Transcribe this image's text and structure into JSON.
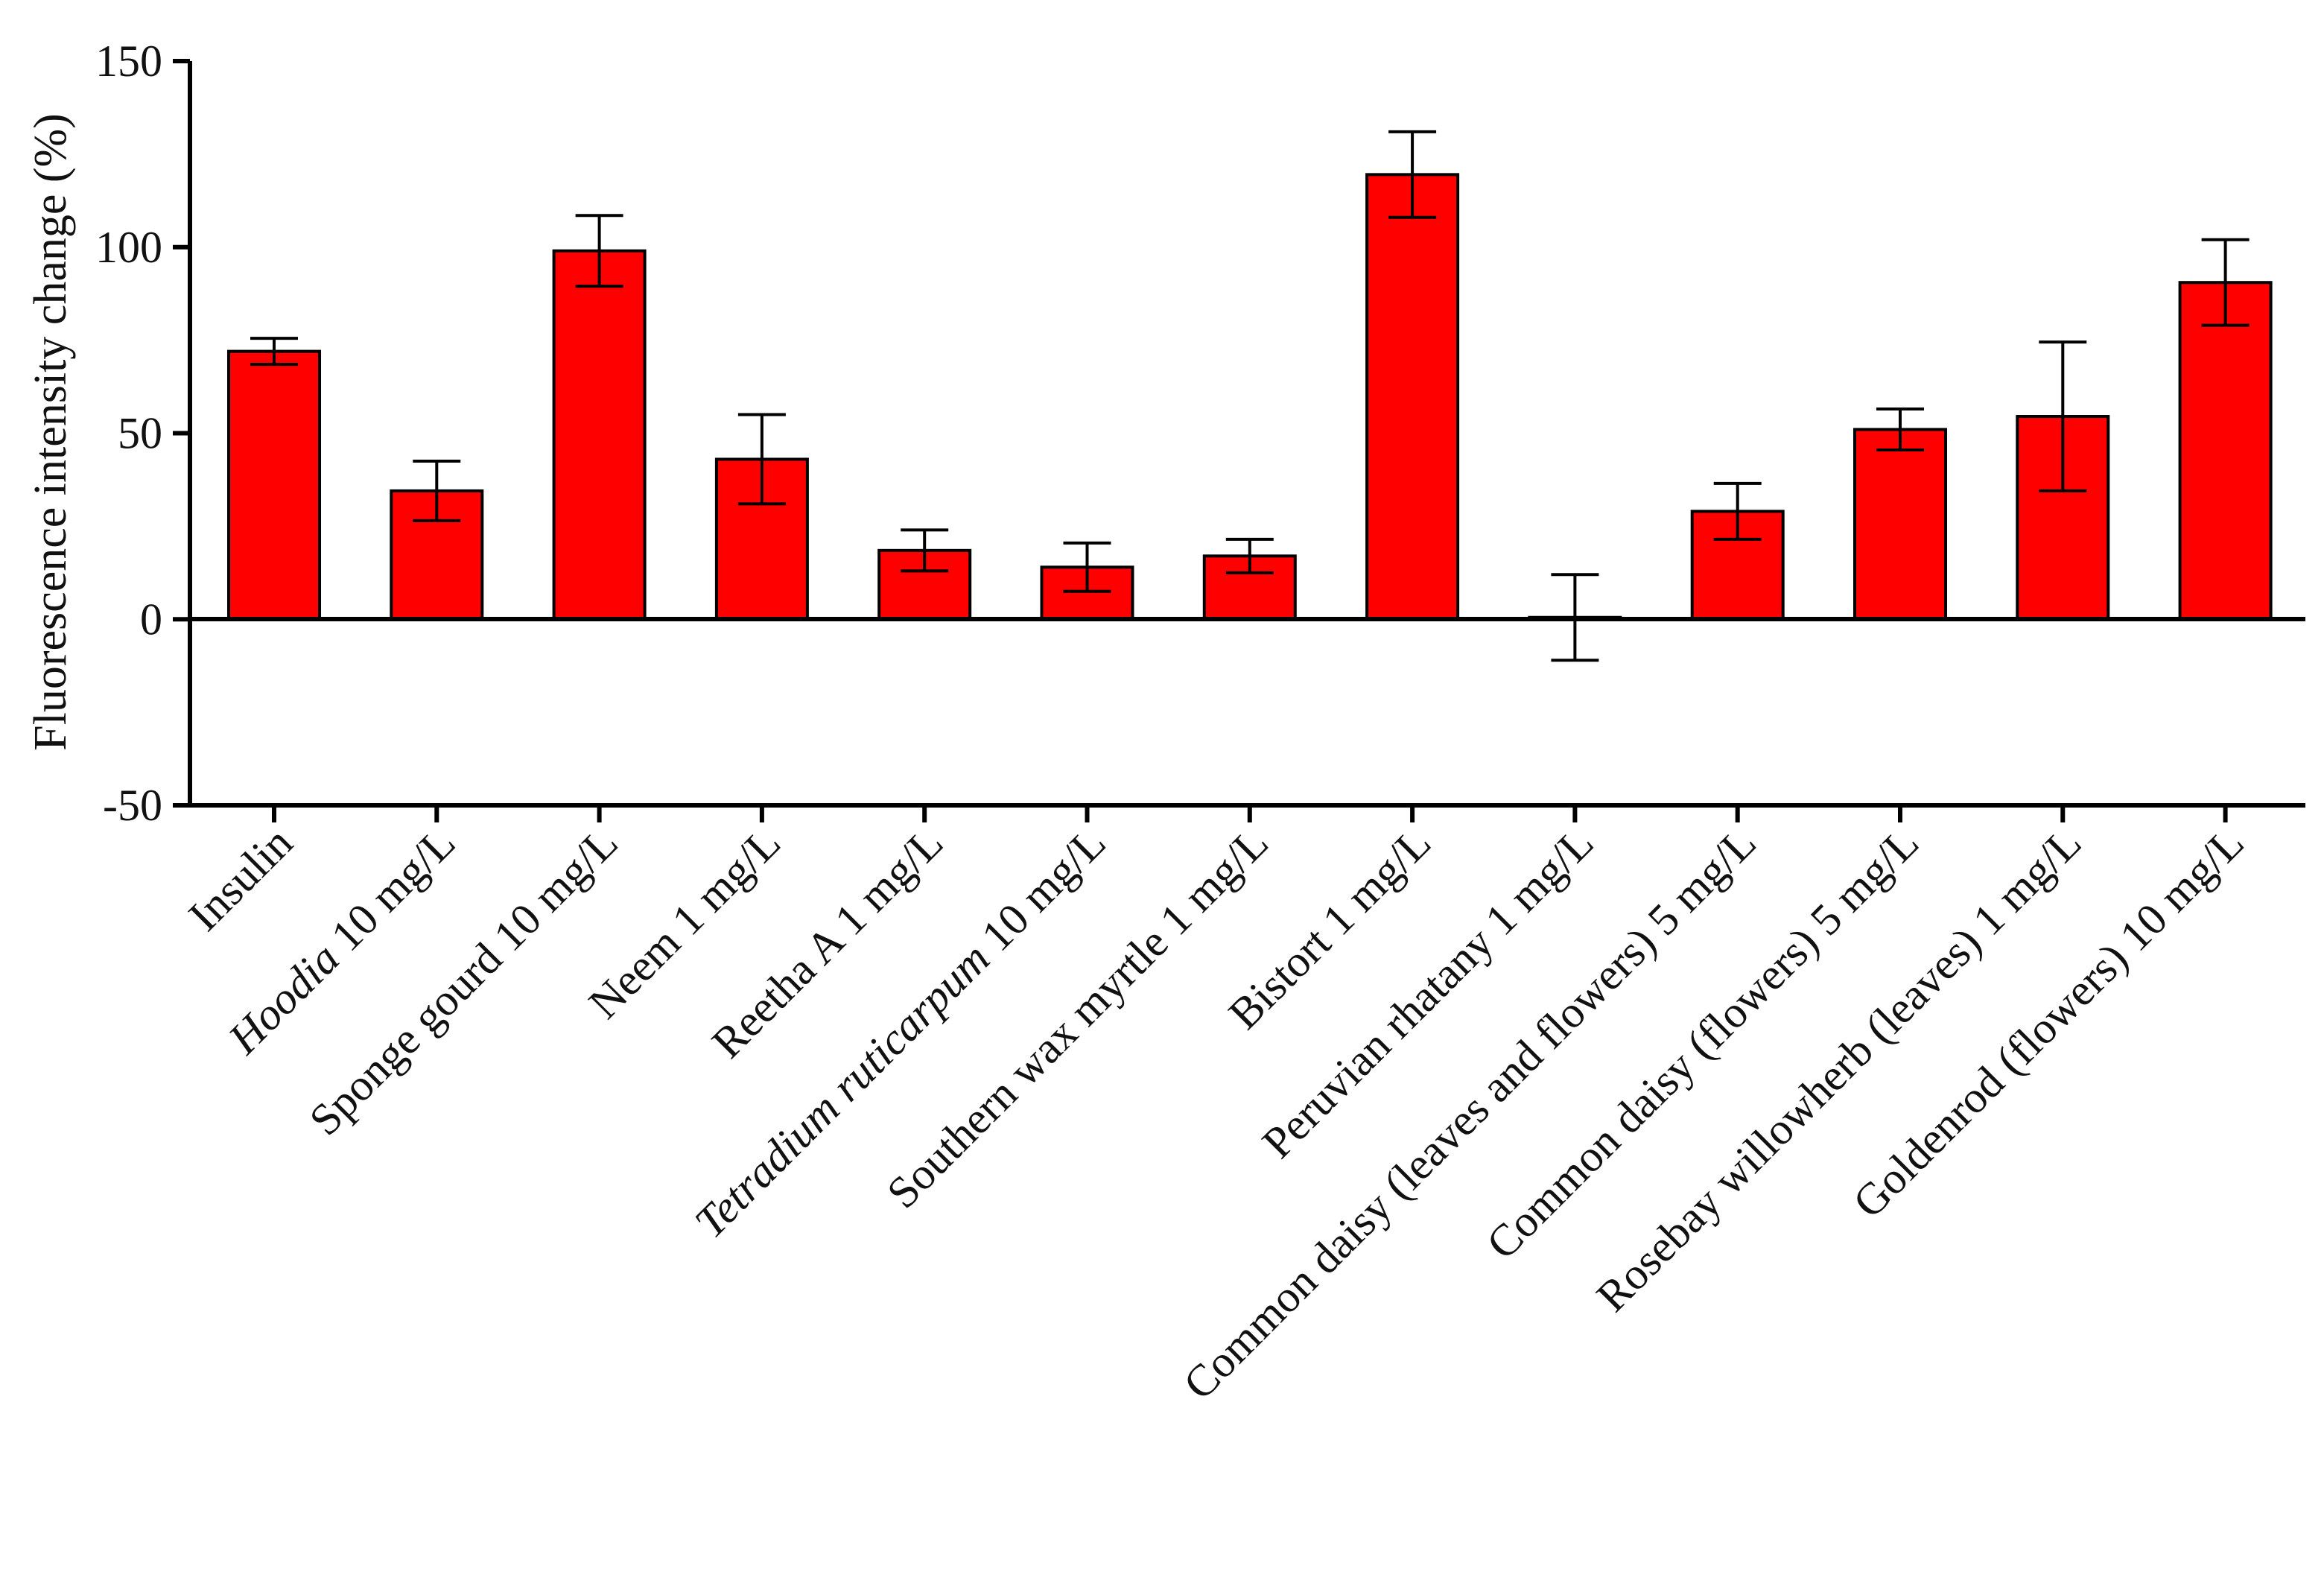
{
  "chart_data": {
    "type": "bar",
    "title": "",
    "xlabel": "",
    "ylabel": "Fluorescence intensity change (%)",
    "ylim": [
      -50,
      150
    ],
    "yticks": [
      -50,
      0,
      50,
      100,
      150
    ],
    "grid": false,
    "legend": "none",
    "bar_color": "#ff0000",
    "categories": [
      {
        "pre": "",
        "italic": "",
        "post": "Insulin"
      },
      {
        "pre": "",
        "italic": "Hoodia",
        "post": " 10 mg/L"
      },
      {
        "pre": "",
        "italic": "",
        "post": "Sponge gourd 10 mg/L"
      },
      {
        "pre": "",
        "italic": "",
        "post": "Neem 1 mg/L"
      },
      {
        "pre": "",
        "italic": "",
        "post": "Reetha A 1 mg/L"
      },
      {
        "pre": "",
        "italic": "Tetradium ruticarpum",
        "post": " 10 mg/L"
      },
      {
        "pre": "",
        "italic": "",
        "post": "Southern wax myrtle 1 mg/L"
      },
      {
        "pre": "",
        "italic": "",
        "post": "Bistort 1 mg/L"
      },
      {
        "pre": "",
        "italic": "",
        "post": "Peruvian rhatany 1 mg/L"
      },
      {
        "pre": "",
        "italic": "",
        "post": "Common daisy (leaves and flowers) 5 mg/L"
      },
      {
        "pre": "",
        "italic": "",
        "post": "Common daisy (flowers) 5 mg/L"
      },
      {
        "pre": "",
        "italic": "",
        "post": "Rosebay willowherb (leaves) 1 mg/L"
      },
      {
        "pre": "",
        "italic": "",
        "post": "Goldenrod (flowers) 10 mg/L"
      }
    ],
    "values": [
      72,
      34.5,
      99,
      43,
      18.5,
      14,
      17,
      119.5,
      0.5,
      29,
      51,
      54.5,
      90.5
    ],
    "errors": [
      3.5,
      8,
      9.5,
      12,
      5.5,
      6.5,
      4.5,
      11.5,
      11.5,
      7.5,
      5.5,
      20,
      11.5
    ]
  }
}
